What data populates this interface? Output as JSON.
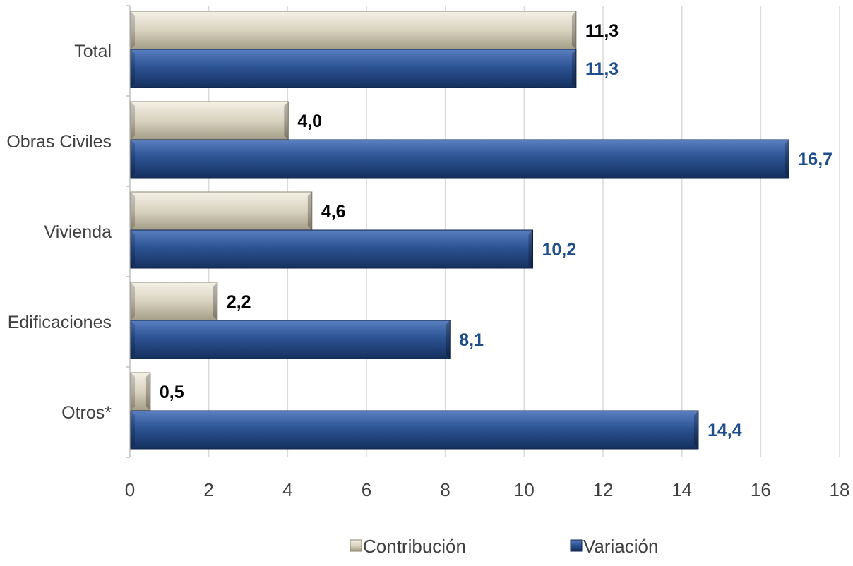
{
  "chart_data": {
    "type": "bar",
    "orientation": "horizontal",
    "categories": [
      "Total",
      "Obras Civiles",
      "Vivienda",
      "Edificaciones",
      "Otros*"
    ],
    "series": [
      {
        "name": "Contribución",
        "values": [
          11.3,
          4.0,
          4.6,
          2.2,
          0.5
        ],
        "labels": [
          "11,3",
          "4,0",
          "4,6",
          "2,2",
          "0,5"
        ],
        "color": "#d8d2bf",
        "label_color": "#000000"
      },
      {
        "name": "Variación",
        "values": [
          11.3,
          16.7,
          10.2,
          8.1,
          14.4
        ],
        "labels": [
          "11,3",
          "16,7",
          "10,2",
          "8,1",
          "14,4"
        ],
        "color": "#2d5494",
        "label_color": "#1f4e8c"
      }
    ],
    "xlim": [
      0,
      18
    ],
    "xticks": [
      0,
      2,
      4,
      6,
      8,
      10,
      12,
      14,
      16,
      18
    ],
    "grid": true,
    "legend_position": "bottom",
    "title": "",
    "xlabel": "",
    "ylabel": ""
  }
}
